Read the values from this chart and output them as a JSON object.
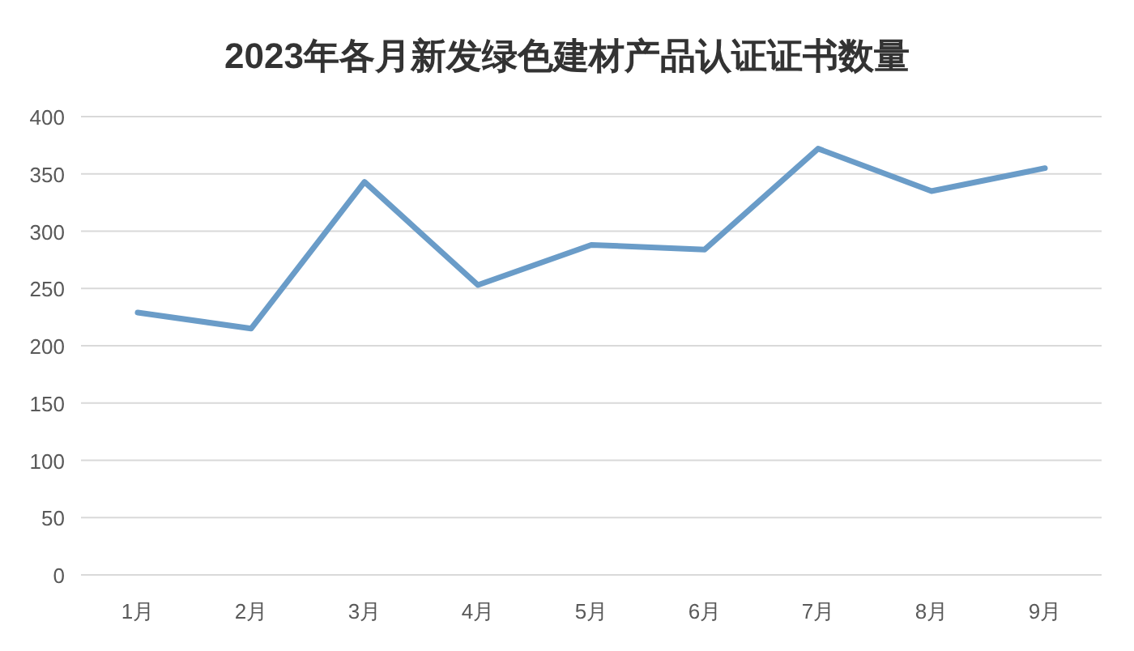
{
  "chart_data": {
    "type": "line",
    "title": "2023年各月新发绿色建材产品认证证书数量",
    "categories": [
      "1月",
      "2月",
      "3月",
      "4月",
      "5月",
      "6月",
      "7月",
      "8月",
      "9月"
    ],
    "series": [
      {
        "color": "#6a9cc8",
        "values": [
          229,
          215,
          343,
          253,
          288,
          284,
          372,
          335,
          355
        ]
      }
    ],
    "ylim": [
      0,
      400
    ],
    "yticks": [
      0,
      50,
      100,
      150,
      200,
      250,
      300,
      350,
      400
    ],
    "grid": "y",
    "marker": "none"
  }
}
